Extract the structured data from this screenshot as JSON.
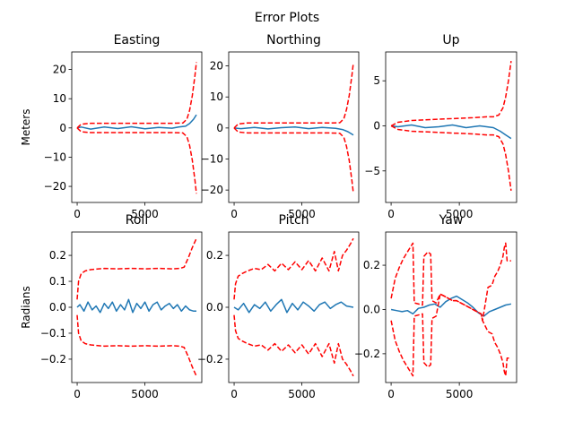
{
  "figure": {
    "title": "Error Plots"
  },
  "colors": {
    "error": "#1f77b4",
    "bound": "#ff0000",
    "axes": "#000000",
    "background": "#ffffff"
  },
  "chart_data": [
    {
      "type": "line",
      "title": "Easting",
      "ylabel": "Meters",
      "xlim": [
        -400,
        9200
      ],
      "ylim": [
        -25.5,
        26
      ],
      "xticks": [
        0,
        5000
      ],
      "yticks": [
        -20,
        -10,
        0,
        10,
        20
      ],
      "series": [
        {
          "role": "error",
          "style": "solid",
          "x": [
            0,
            300,
            1000,
            2000,
            3000,
            4000,
            5000,
            6000,
            7000,
            7500,
            8000,
            8300,
            8600,
            8800
          ],
          "y": [
            0,
            0.3,
            -0.4,
            0.3,
            -0.2,
            0.4,
            -0.3,
            0.2,
            -0.1,
            0.3,
            0.6,
            1.5,
            3.0,
            4.5
          ]
        },
        {
          "role": "upper-bound",
          "style": "dashed",
          "x": [
            0,
            300,
            1000,
            3000,
            5000,
            7000,
            7800,
            8100,
            8300,
            8500,
            8700,
            8800
          ],
          "y": [
            0,
            1.3,
            1.6,
            1.6,
            1.6,
            1.6,
            1.7,
            3,
            6,
            11,
            18,
            22.5
          ]
        },
        {
          "role": "lower-bound",
          "style": "dashed",
          "x": [
            0,
            300,
            1000,
            3000,
            5000,
            7000,
            7800,
            8100,
            8300,
            8500,
            8700,
            8800
          ],
          "y": [
            0,
            -1.3,
            -1.6,
            -1.6,
            -1.6,
            -1.6,
            -1.7,
            -3,
            -6,
            -11,
            -18,
            -22.5
          ]
        }
      ]
    },
    {
      "type": "line",
      "title": "Northing",
      "ylabel": "",
      "xlim": [
        -400,
        9200
      ],
      "ylim": [
        -24,
        24.5
      ],
      "xticks": [
        0,
        5000
      ],
      "yticks": [
        -20,
        -10,
        0,
        10,
        20
      ],
      "series": [
        {
          "role": "error",
          "style": "solid",
          "x": [
            0,
            500,
            1500,
            2500,
            3500,
            4500,
            5500,
            6500,
            7500,
            8000,
            8400,
            8800
          ],
          "y": [
            0,
            -0.2,
            0.2,
            -0.3,
            0.1,
            0.3,
            -0.2,
            0.2,
            -0.1,
            -0.5,
            -1.2,
            -2.3
          ]
        },
        {
          "role": "upper-bound",
          "style": "dashed",
          "x": [
            0,
            300,
            1000,
            3000,
            5000,
            7000,
            7800,
            8100,
            8300,
            8500,
            8700,
            8800
          ],
          "y": [
            0,
            1.3,
            1.6,
            1.6,
            1.6,
            1.6,
            1.7,
            3,
            6,
            10.5,
            17,
            21
          ]
        },
        {
          "role": "lower-bound",
          "style": "dashed",
          "x": [
            0,
            300,
            1000,
            3000,
            5000,
            7000,
            7800,
            8100,
            8300,
            8500,
            8700,
            8800
          ],
          "y": [
            0,
            -1.3,
            -1.6,
            -1.6,
            -1.6,
            -1.6,
            -1.7,
            -3,
            -6,
            -10.5,
            -17,
            -21
          ]
        }
      ]
    },
    {
      "type": "line",
      "title": "Up",
      "ylabel": "",
      "xlim": [
        -400,
        9200
      ],
      "ylim": [
        -8.5,
        8.2
      ],
      "xticks": [
        0,
        5000
      ],
      "yticks": [
        -5,
        0,
        5
      ],
      "series": [
        {
          "role": "error",
          "style": "solid",
          "x": [
            0,
            500,
            1500,
            2500,
            3500,
            4500,
            5500,
            6500,
            7000,
            7500,
            8000,
            8400,
            8800
          ],
          "y": [
            0,
            -0.1,
            0.1,
            -0.2,
            -0.1,
            0.1,
            -0.2,
            0.0,
            -0.1,
            -0.2,
            -0.6,
            -1.0,
            -1.4
          ]
        },
        {
          "role": "upper-bound",
          "style": "dashed",
          "x": [
            0,
            500,
            1500,
            3000,
            4500,
            6000,
            7000,
            7500,
            7900,
            8200,
            8400,
            8600,
            8800
          ],
          "y": [
            0,
            0.4,
            0.6,
            0.7,
            0.8,
            0.9,
            1.0,
            1.0,
            1.2,
            2.0,
            3.2,
            5.0,
            7.2
          ]
        },
        {
          "role": "lower-bound",
          "style": "dashed",
          "x": [
            0,
            500,
            1500,
            3000,
            4500,
            6000,
            7000,
            7500,
            7900,
            8200,
            8400,
            8600,
            8800
          ],
          "y": [
            0,
            -0.4,
            -0.6,
            -0.7,
            -0.8,
            -0.9,
            -1.0,
            -1.0,
            -1.2,
            -2.0,
            -3.2,
            -5.0,
            -7.2
          ]
        }
      ]
    },
    {
      "type": "line",
      "title": "Roll",
      "ylabel": "Radians",
      "xlim": [
        -400,
        9200
      ],
      "ylim": [
        -0.29,
        0.29
      ],
      "xticks": [
        0,
        5000
      ],
      "yticks": [
        -0.2,
        -0.1,
        0.0,
        0.1,
        0.2
      ],
      "series": [
        {
          "role": "error",
          "style": "solid",
          "x": [
            0,
            200,
            500,
            800,
            1100,
            1400,
            1700,
            2000,
            2300,
            2600,
            2900,
            3200,
            3500,
            3800,
            4100,
            4400,
            4700,
            5000,
            5300,
            5600,
            5900,
            6200,
            6500,
            6800,
            7100,
            7400,
            7700,
            8000,
            8300,
            8600,
            8800
          ],
          "y": [
            0,
            0.01,
            -0.015,
            0.02,
            -0.01,
            0.005,
            -0.02,
            0.015,
            -0.005,
            0.02,
            -0.015,
            0.01,
            -0.01,
            0.03,
            -0.02,
            0.015,
            -0.005,
            0.02,
            -0.015,
            0.01,
            0.02,
            -0.01,
            0.005,
            0.015,
            -0.005,
            0.01,
            -0.015,
            0.005,
            -0.01,
            -0.015,
            -0.015
          ]
        },
        {
          "role": "upper-bound",
          "style": "dashed",
          "x": [
            0,
            100,
            300,
            600,
            1000,
            2000,
            3000,
            4000,
            5000,
            6000,
            7000,
            7600,
            7900,
            8200,
            8500,
            8800
          ],
          "y": [
            0.03,
            0.1,
            0.13,
            0.14,
            0.145,
            0.15,
            0.148,
            0.15,
            0.148,
            0.15,
            0.148,
            0.15,
            0.155,
            0.19,
            0.23,
            0.265
          ]
        },
        {
          "role": "lower-bound",
          "style": "dashed",
          "x": [
            0,
            100,
            300,
            600,
            1000,
            2000,
            3000,
            4000,
            5000,
            6000,
            7000,
            7600,
            7900,
            8200,
            8500,
            8800
          ],
          "y": [
            -0.03,
            -0.1,
            -0.13,
            -0.14,
            -0.145,
            -0.15,
            -0.148,
            -0.15,
            -0.148,
            -0.15,
            -0.148,
            -0.15,
            -0.155,
            -0.19,
            -0.23,
            -0.265
          ]
        }
      ]
    },
    {
      "type": "line",
      "title": "Pitch",
      "ylabel": "",
      "xlim": [
        -400,
        9200
      ],
      "ylim": [
        -0.29,
        0.29
      ],
      "xticks": [
        0,
        5000
      ],
      "yticks": [
        -0.2,
        0.0,
        0.2
      ],
      "series": [
        {
          "role": "error",
          "style": "solid",
          "x": [
            0,
            300,
            700,
            1100,
            1500,
            1900,
            2300,
            2700,
            3100,
            3500,
            3900,
            4300,
            4700,
            5100,
            5500,
            5900,
            6300,
            6700,
            7100,
            7500,
            7900,
            8300,
            8800
          ],
          "y": [
            0,
            -0.01,
            0.015,
            -0.02,
            0.01,
            -0.005,
            0.02,
            -0.015,
            0.01,
            0.03,
            -0.02,
            0.015,
            -0.01,
            0.02,
            0.005,
            -0.015,
            0.01,
            0.02,
            -0.005,
            0.01,
            0.02,
            0.005,
            0.0
          ]
        },
        {
          "role": "upper-bound",
          "style": "dashed",
          "x": [
            0,
            100,
            300,
            600,
            1000,
            1500,
            2000,
            2500,
            3000,
            3500,
            4000,
            4500,
            5000,
            5500,
            6000,
            6500,
            7000,
            7400,
            7700,
            8000,
            8300,
            8600,
            8800
          ],
          "y": [
            0.03,
            0.09,
            0.12,
            0.13,
            0.14,
            0.15,
            0.145,
            0.165,
            0.14,
            0.17,
            0.145,
            0.175,
            0.145,
            0.18,
            0.14,
            0.19,
            0.14,
            0.215,
            0.14,
            0.2,
            0.22,
            0.245,
            0.265
          ]
        },
        {
          "role": "lower-bound",
          "style": "dashed",
          "x": [
            0,
            100,
            300,
            600,
            1000,
            1500,
            2000,
            2500,
            3000,
            3500,
            4000,
            4500,
            5000,
            5500,
            6000,
            6500,
            7000,
            7400,
            7700,
            8000,
            8300,
            8600,
            8800
          ],
          "y": [
            -0.03,
            -0.09,
            -0.12,
            -0.13,
            -0.14,
            -0.15,
            -0.145,
            -0.165,
            -0.14,
            -0.17,
            -0.145,
            -0.175,
            -0.145,
            -0.18,
            -0.14,
            -0.19,
            -0.14,
            -0.215,
            -0.14,
            -0.2,
            -0.22,
            -0.245,
            -0.265
          ]
        }
      ]
    },
    {
      "type": "line",
      "title": "Yaw",
      "ylabel": "",
      "xlim": [
        -400,
        9200
      ],
      "ylim": [
        -0.33,
        0.35
      ],
      "xticks": [
        0,
        5000
      ],
      "yticks": [
        -0.2,
        0.0,
        0.2
      ],
      "series": [
        {
          "role": "error",
          "style": "solid",
          "x": [
            0,
            400,
            800,
            1200,
            1600,
            2000,
            2400,
            2800,
            3200,
            3600,
            4000,
            4400,
            4800,
            5200,
            5600,
            6000,
            6400,
            6800,
            7200,
            7600,
            8000,
            8400,
            8800
          ],
          "y": [
            0,
            -0.005,
            -0.01,
            -0.005,
            -0.02,
            0.005,
            0.01,
            0.02,
            0.025,
            0.01,
            0.035,
            0.05,
            0.06,
            0.045,
            0.03,
            0.01,
            -0.015,
            -0.03,
            -0.01,
            0.0,
            0.01,
            0.02,
            0.025
          ]
        },
        {
          "role": "upper-bound",
          "style": "dashed",
          "x": [
            0,
            100,
            300,
            600,
            900,
            1200,
            1500,
            1600,
            1700,
            2300,
            2400,
            2700,
            2900,
            3000,
            3300,
            3600,
            3900,
            4200,
            4500,
            4800,
            5100,
            5400,
            5700,
            6000,
            6300,
            6600,
            6700,
            7100,
            7400,
            7600,
            7800,
            8000,
            8200,
            8300,
            8400,
            8500,
            8800
          ],
          "y": [
            0.05,
            0.08,
            0.14,
            0.19,
            0.23,
            0.26,
            0.29,
            0.3,
            0.03,
            0.02,
            0.24,
            0.26,
            0.25,
            0.04,
            0.03,
            0.07,
            0.06,
            0.05,
            0.04,
            0.04,
            0.03,
            0.02,
            0.01,
            0.0,
            -0.01,
            -0.02,
            -0.05,
            0.1,
            0.11,
            0.15,
            0.17,
            0.2,
            0.24,
            0.28,
            0.3,
            0.22,
            0.22
          ]
        },
        {
          "role": "lower-bound",
          "style": "dashed",
          "x": [
            0,
            100,
            300,
            600,
            900,
            1200,
            1500,
            1600,
            1700,
            2300,
            2400,
            2700,
            2900,
            3000,
            3300,
            3600,
            3900,
            4200,
            4500,
            4800,
            5100,
            5400,
            5700,
            6000,
            6300,
            6600,
            6700,
            7100,
            7400,
            7600,
            7800,
            8000,
            8200,
            8300,
            8400,
            8500,
            8800
          ],
          "y": [
            -0.05,
            -0.08,
            -0.14,
            -0.19,
            -0.23,
            -0.26,
            -0.29,
            -0.3,
            -0.03,
            -0.02,
            -0.24,
            -0.26,
            -0.25,
            -0.04,
            -0.03,
            0.07,
            0.06,
            0.05,
            0.04,
            0.04,
            0.03,
            0.02,
            0.01,
            0.0,
            -0.01,
            -0.02,
            -0.05,
            -0.1,
            -0.11,
            -0.15,
            -0.17,
            -0.2,
            -0.24,
            -0.28,
            -0.3,
            -0.22,
            -0.22
          ]
        }
      ]
    }
  ]
}
